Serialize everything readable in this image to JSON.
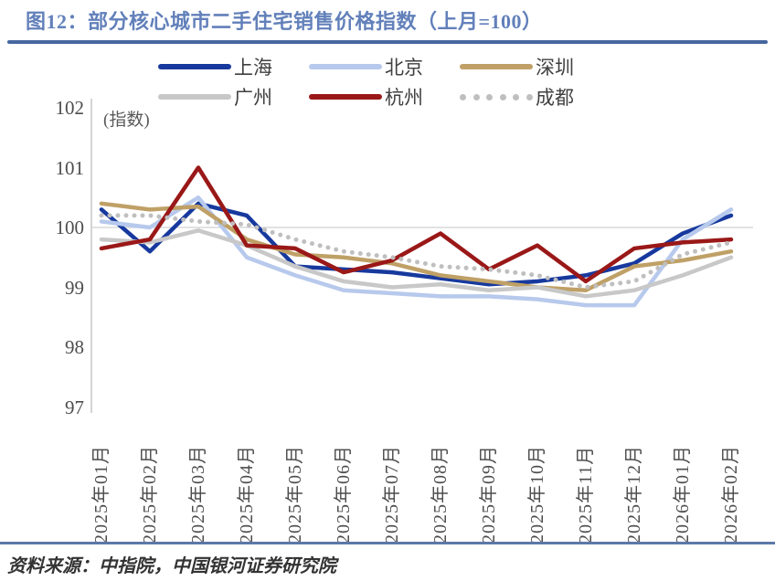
{
  "header": {
    "title": "图12：部分核心城市二手住宅销售价格指数（上月=100）"
  },
  "footer": {
    "source": "资料来源：中指院，中国银河证券研究院"
  },
  "colors": {
    "title_text": "#6280BA",
    "title_rule": "#47669E",
    "bottom_rule": "#5C79A8",
    "axis_line": "#D4D4D4",
    "grid_line": "#D9D9D9",
    "tick_text": "#4D4D4D"
  },
  "chart_data": {
    "type": "line",
    "title": "部分核心城市二手住宅销售价格指数（上月=100）",
    "unit_label": "(指数)",
    "ylim": [
      97,
      102
    ],
    "yticks": [
      97,
      98,
      99,
      100,
      101,
      102
    ],
    "grid_lines": [
      100
    ],
    "legend_position": "top",
    "categories": [
      "2025年01月",
      "2025年02月",
      "2025年03月",
      "2025年04月",
      "2025年05月",
      "2025年06月",
      "2025年07月",
      "2025年08月",
      "2025年09月",
      "2025年10月",
      "2025年11月",
      "2025年12月",
      "2026年01月",
      "2026年02月"
    ],
    "series": [
      {
        "name": "上海",
        "color": "#17399E",
        "style": "solid",
        "values": [
          100.3,
          99.6,
          100.4,
          100.2,
          99.35,
          99.3,
          99.25,
          99.15,
          99.05,
          99.1,
          99.2,
          99.4,
          99.9,
          100.2
        ]
      },
      {
        "name": "北京",
        "color": "#B7C9EC",
        "style": "solid",
        "values": [
          100.1,
          100.0,
          100.5,
          99.5,
          99.2,
          98.95,
          98.9,
          98.85,
          98.85,
          98.8,
          98.7,
          98.7,
          99.8,
          100.3
        ]
      },
      {
        "name": "深圳",
        "color": "#BFA066",
        "style": "solid",
        "values": [
          100.4,
          100.3,
          100.35,
          99.8,
          99.55,
          99.5,
          99.4,
          99.2,
          99.1,
          99.0,
          98.95,
          99.35,
          99.45,
          99.6
        ]
      },
      {
        "name": "广州",
        "color": "#C8C8C8",
        "style": "solid",
        "values": [
          99.8,
          99.75,
          99.95,
          99.7,
          99.35,
          99.1,
          99.0,
          99.05,
          98.95,
          99.0,
          98.85,
          98.95,
          99.2,
          99.5
        ]
      },
      {
        "name": "杭州",
        "color": "#9A1818",
        "style": "solid",
        "values": [
          99.65,
          99.8,
          101.0,
          99.7,
          99.65,
          99.25,
          99.45,
          99.9,
          99.3,
          99.7,
          99.1,
          99.65,
          99.75,
          99.8
        ]
      },
      {
        "name": "成都",
        "color": "#BFBFBF",
        "style": "dotted",
        "values": [
          100.2,
          100.2,
          100.1,
          100.05,
          99.8,
          99.6,
          99.5,
          99.35,
          99.3,
          99.2,
          99.0,
          99.1,
          99.55,
          99.75
        ]
      }
    ]
  }
}
